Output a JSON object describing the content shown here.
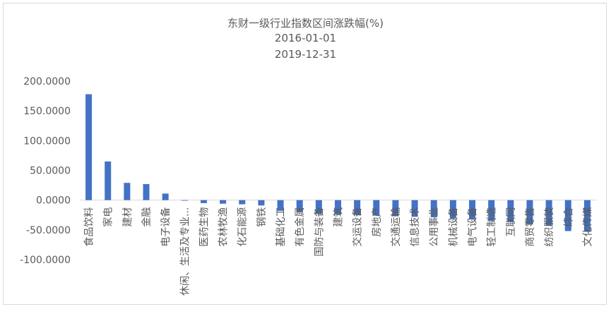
{
  "chart_data": {
    "type": "bar",
    "title": "东财一级行业指数区间涨跌幅(%)",
    "subtitle_start": "2016-01-01",
    "subtitle_end": "2019-12-31",
    "xlabel": "",
    "ylabel": "",
    "ylim": [
      -100,
      200
    ],
    "yticks": [
      "200.0000",
      "150.0000",
      "100.0000",
      "50.0000",
      "0.0000",
      "-50.0000",
      "-100.0000"
    ],
    "ytick_values": [
      200,
      150,
      100,
      50,
      0,
      -50,
      -100
    ],
    "grid": false,
    "legend": "none",
    "bar_color": "#4472C4",
    "categories": [
      "食品饮料",
      "家电",
      "建材",
      "金融",
      "电子设备",
      "休闲、生活及专业...",
      "医药生物",
      "农林牧渔",
      "化石能源",
      "钢铁",
      "基础化工",
      "有色金属",
      "国防与装备",
      "建筑",
      "交运设备",
      "房地产",
      "交通运输",
      "信息技术",
      "公用事业",
      "机械设备",
      "电气设备",
      "轻工制造",
      "互联网",
      "商贸零售",
      "纺织服装",
      "综合",
      "文化传媒"
    ],
    "values": [
      178,
      65,
      29,
      27,
      11,
      -1,
      -5,
      -6,
      -7,
      -9,
      -18,
      -20,
      -23,
      -24,
      -25,
      -26,
      -27,
      -28,
      -29,
      -31,
      -32,
      -35,
      -37,
      -41,
      -43,
      -52,
      -53
    ]
  }
}
